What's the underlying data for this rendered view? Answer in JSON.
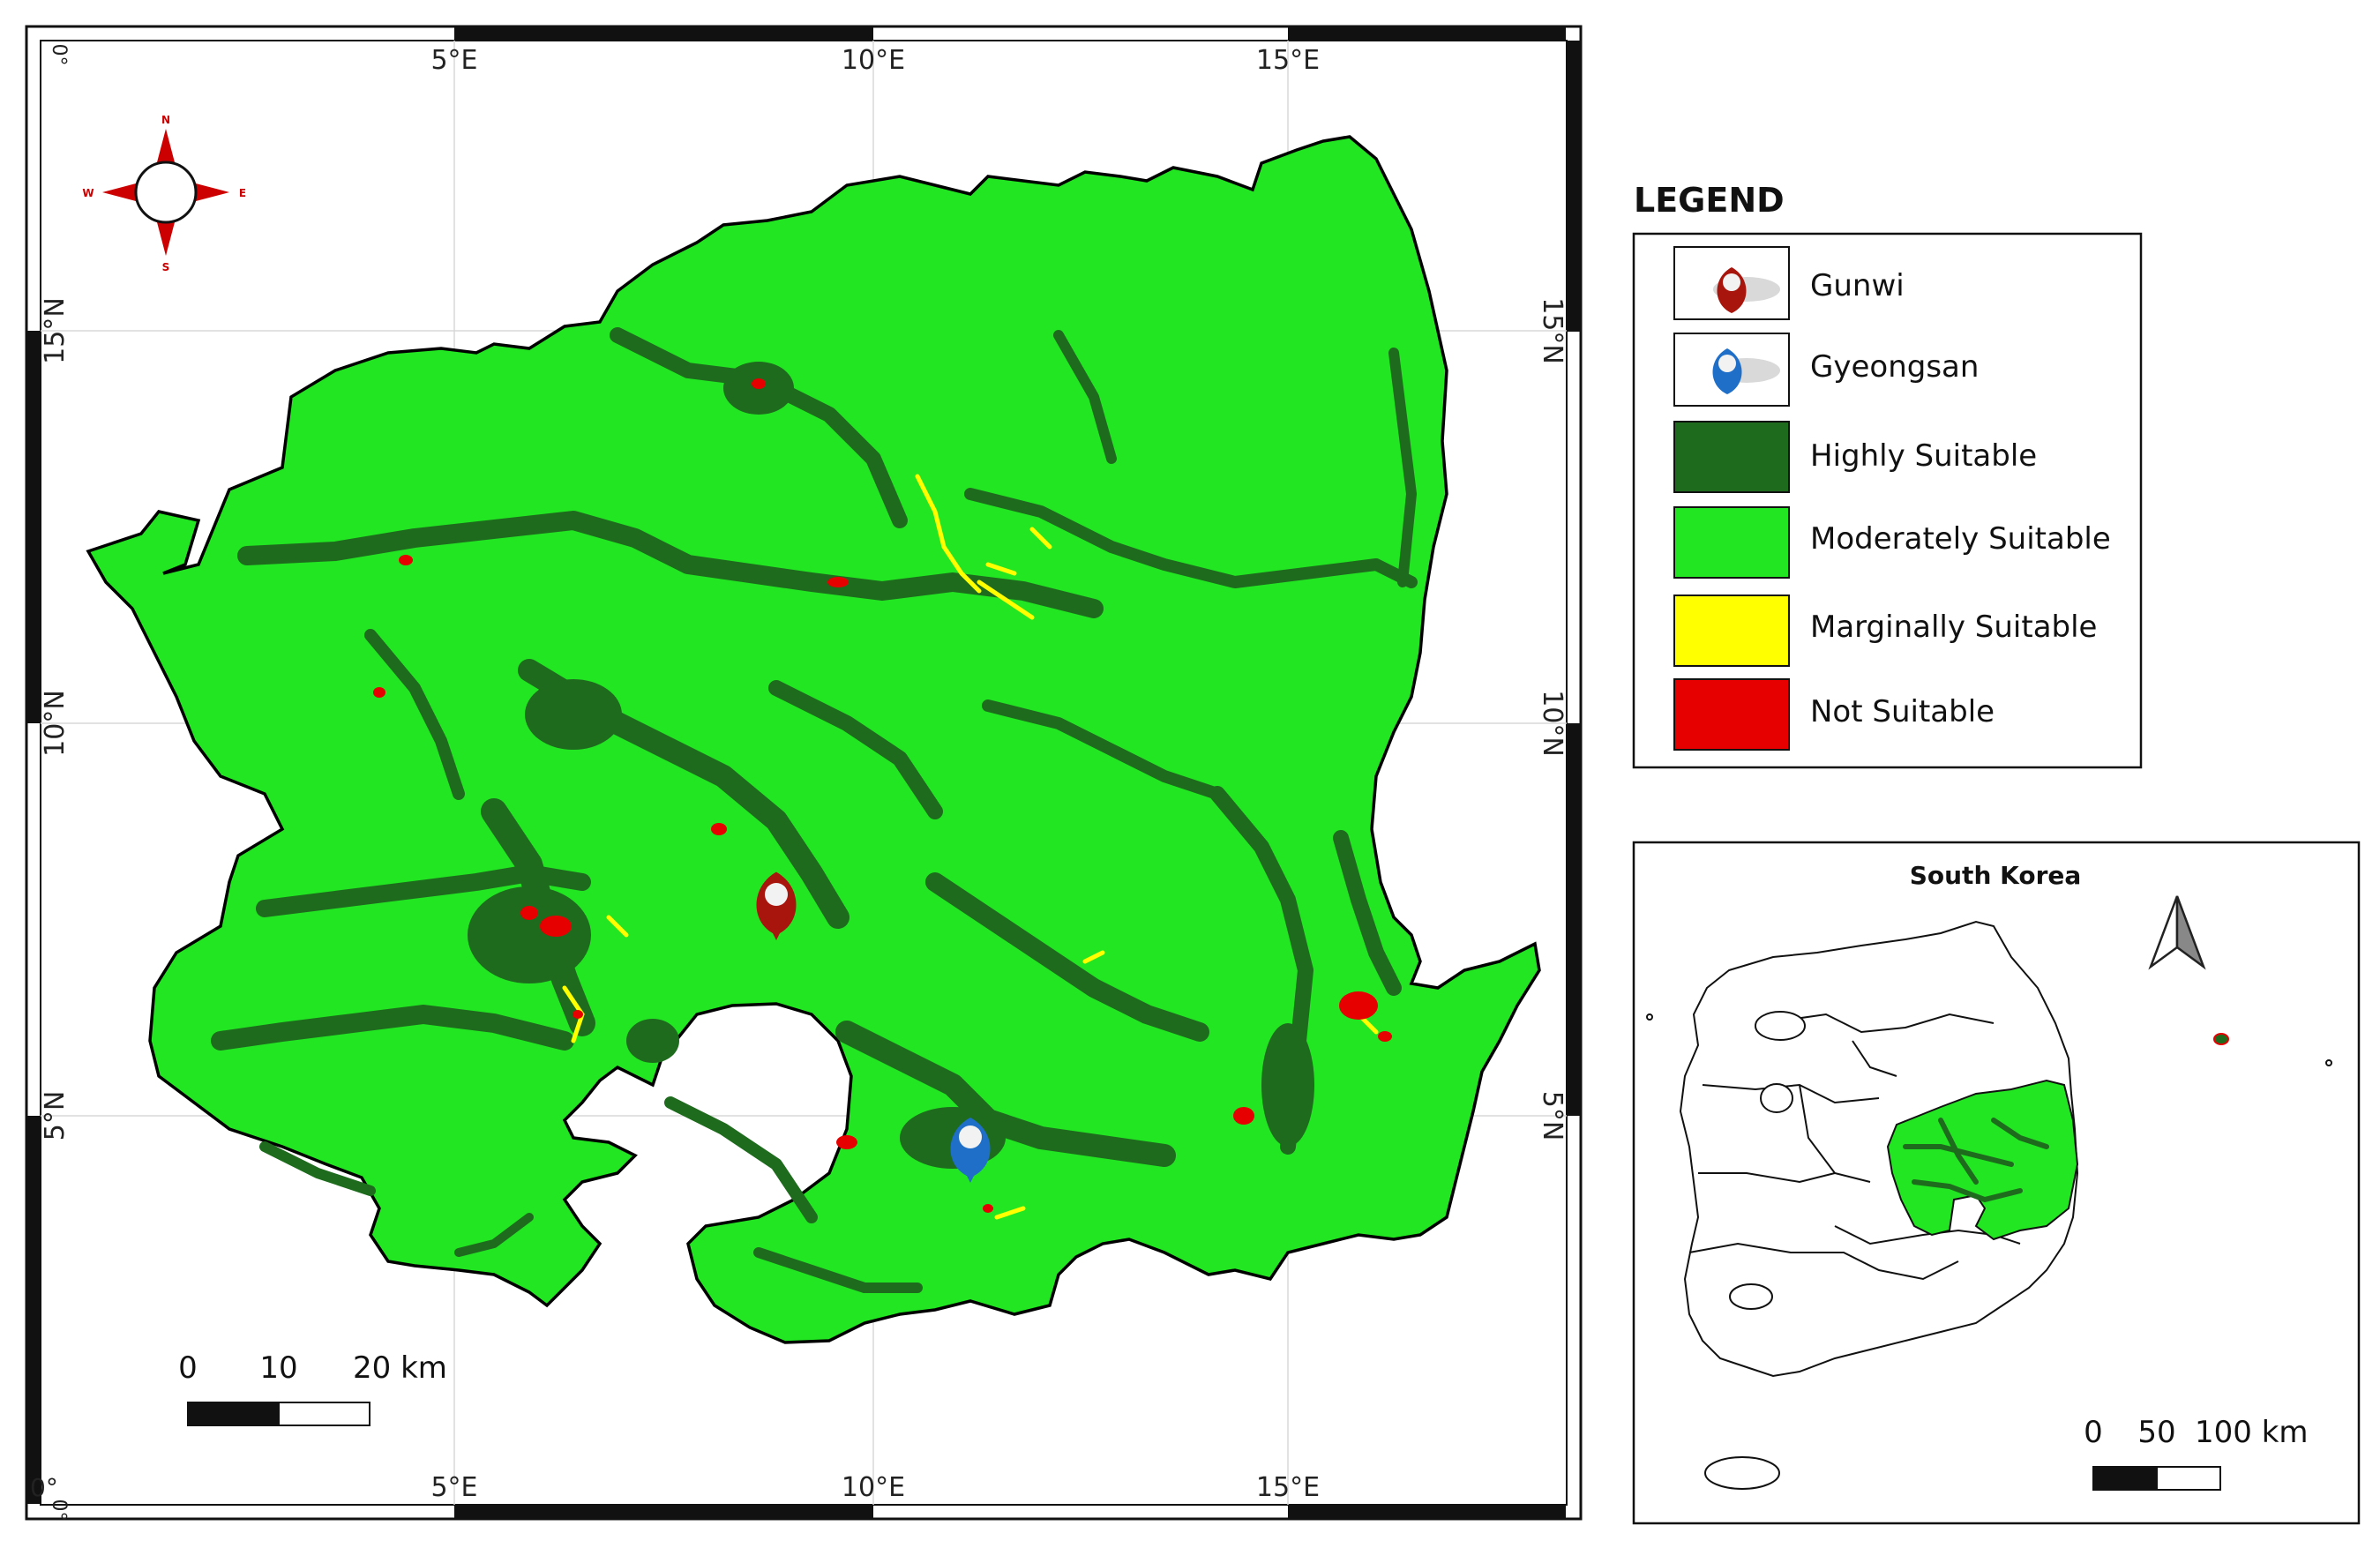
{
  "colors": {
    "highly": "#1e6b1e",
    "moderately": "#22e622",
    "marginally": "#ffff00",
    "not": "#e60000",
    "gunwi_pin": "#a8150c",
    "gyeongsan_pin": "#1f6fc9",
    "frame_dark": "#111111"
  },
  "map": {
    "top_ticks": [
      "5°E",
      "10°E",
      "15°E"
    ],
    "bottom_ticks": [
      "5°E",
      "10°E",
      "15°E"
    ],
    "left_ticks": [
      "15°N",
      "10°N",
      "5°N"
    ],
    "right_ticks": [
      "15°N",
      "10°N",
      "5°N"
    ],
    "corner_tl": "0°",
    "corner_bl": "0°",
    "corner_bl2": "0°",
    "north_arrow": {
      "n": "N",
      "s": "S",
      "e": "E",
      "w": "W"
    },
    "scale_bar": {
      "labels": [
        "0",
        "10",
        "20 km"
      ]
    }
  },
  "legend": {
    "title": "LEGEND",
    "items": [
      {
        "label": "Gunwi",
        "icon": "red-pin-icon"
      },
      {
        "label": "Gyeongsan",
        "icon": "blue-pin-icon"
      },
      {
        "label": "Highly Suitable",
        "color": "#1e6b1e"
      },
      {
        "label": "Moderately Suitable",
        "color": "#22e622"
      },
      {
        "label": "Marginally Suitable",
        "color": "#ffff00"
      },
      {
        "label": "Not Suitable",
        "color": "#e60000"
      }
    ]
  },
  "inset": {
    "title": "South Korea",
    "scale_bar": {
      "labels": [
        "0",
        "50",
        "100 km"
      ]
    }
  }
}
